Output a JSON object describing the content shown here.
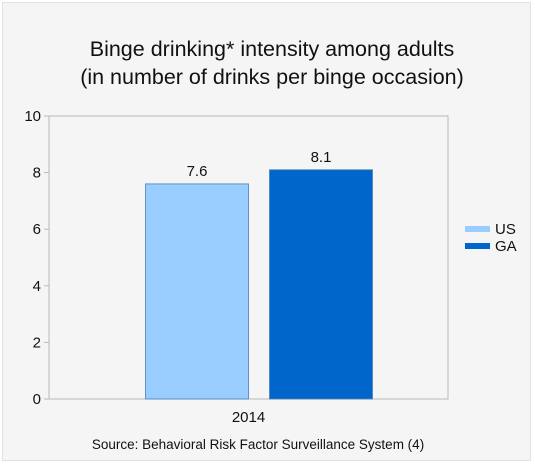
{
  "chart_data": {
    "type": "bar",
    "title": [
      "Binge drinking* intensity among adults",
      "(in number of drinks per binge occasion)"
    ],
    "categories": [
      "2014"
    ],
    "series": [
      {
        "name": "US",
        "values": [
          7.6
        ],
        "labels": [
          "7.6"
        ],
        "color": "#99ccff"
      },
      {
        "name": "GA",
        "values": [
          8.1
        ],
        "labels": [
          "8.1"
        ],
        "color": "#0066cc"
      }
    ],
    "ylim": [
      0,
      10
    ],
    "yticks": [
      "0",
      "2",
      "4",
      "6",
      "8",
      "10"
    ],
    "legend_position": "right",
    "grid": false
  },
  "source": "Source: Behavioral Risk Factor Surveillance System (4)"
}
